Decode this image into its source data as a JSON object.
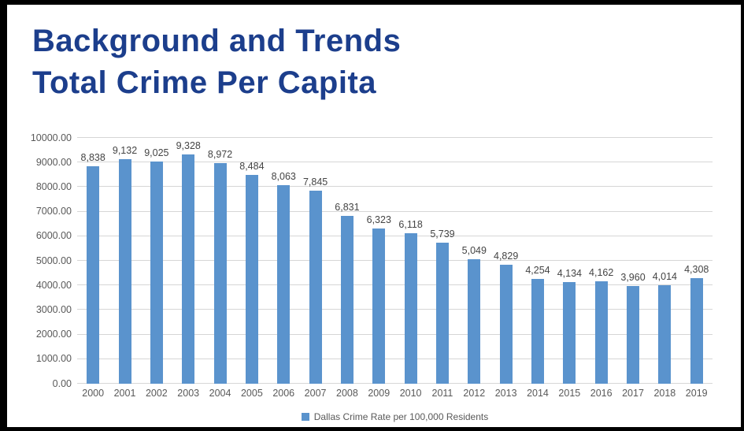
{
  "frame": {
    "background_color": "#ffffff",
    "border_color": "#000000"
  },
  "title": {
    "line1": "Background and Trends",
    "line2": "Total Crime Per Capita",
    "color": "#1c3e8c"
  },
  "chart_data": {
    "type": "bar",
    "title": "Background and Trends Total Crime Per Capita",
    "categories": [
      "2000",
      "2001",
      "2002",
      "2003",
      "2004",
      "2005",
      "2006",
      "2007",
      "2008",
      "2009",
      "2010",
      "2011",
      "2012",
      "2013",
      "2014",
      "2015",
      "2016",
      "2017",
      "2018",
      "2019"
    ],
    "values": [
      8838,
      9132,
      9025,
      9328,
      8972,
      8484,
      8063,
      7845,
      6831,
      6323,
      6118,
      5739,
      5049,
      4829,
      4254,
      4134,
      4162,
      3960,
      4014,
      4308
    ],
    "value_labels": [
      "8,838",
      "9,132",
      "9,025",
      "9,328",
      "8,972",
      "8,484",
      "8,063",
      "7,845",
      "6,831",
      "6,323",
      "6,118",
      "5,739",
      "5,049",
      "4,829",
      "4,254",
      "4,134",
      "4,162",
      "3,960",
      "4,014",
      "4,308"
    ],
    "xlabel": "",
    "ylabel": "",
    "ylim": [
      0,
      10000
    ],
    "y_ticks": [
      "0.00",
      "1000.00",
      "2000.00",
      "3000.00",
      "4000.00",
      "5000.00",
      "6000.00",
      "7000.00",
      "8000.00",
      "9000.00",
      "10000.00"
    ],
    "grid": true,
    "legend": [
      "Dallas Crime Rate per 100,000 Residents"
    ],
    "legend_position": "bottom",
    "bar_color": "#5a93cd",
    "gridline_color": "#d6d6d6",
    "axis_text_color": "#595959",
    "data_label_color": "#444444"
  }
}
